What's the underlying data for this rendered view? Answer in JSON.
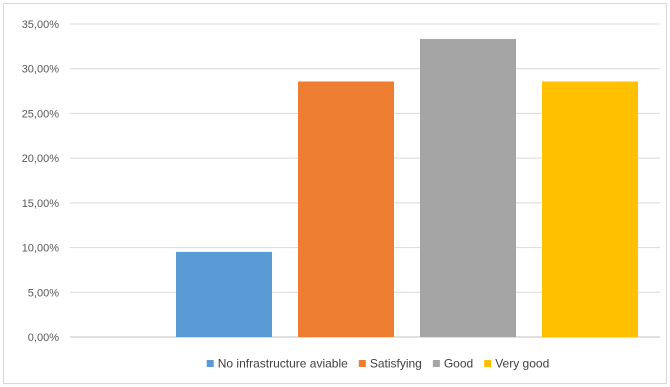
{
  "chart_data": {
    "type": "bar",
    "title": "",
    "xlabel": "",
    "ylabel": "",
    "ylim": [
      0,
      35
    ],
    "y_tick_step": 5,
    "y_tick_labels": [
      "0,00%",
      "5,00%",
      "10,00%",
      "15,00%",
      "20,00%",
      "25,00%",
      "30,00%",
      "35,00%"
    ],
    "grid": true,
    "legend_position": "bottom",
    "categories": [
      "No infrastructure aviable",
      "Satisfying",
      "Good",
      "Very good"
    ],
    "values": [
      9.52,
      28.57,
      33.33,
      28.57
    ],
    "colors": [
      "#5b9bd5",
      "#ed7d31",
      "#a5a5a5",
      "#ffc000"
    ]
  }
}
